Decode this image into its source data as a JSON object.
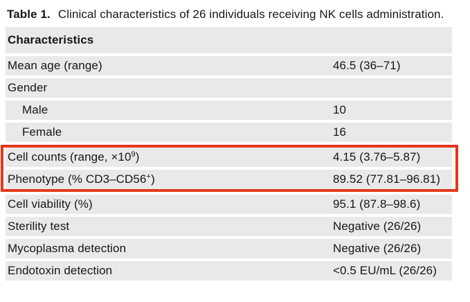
{
  "caption": {
    "label": "Table 1.",
    "text": "Clinical characteristics of 26 individuals receiving NK cells administration."
  },
  "table": {
    "header": "Characteristics",
    "rows": [
      {
        "label": "Mean age (range)",
        "sup": "",
        "post": "",
        "value": "46.5 (36–71)"
      },
      {
        "label": "Gender",
        "sup": "",
        "post": "",
        "value": ""
      },
      {
        "label": "Male",
        "sup": "",
        "post": "",
        "value": "10"
      },
      {
        "label": "Female",
        "sup": "",
        "post": "",
        "value": "16"
      },
      {
        "label": "Cell counts (range, ×10",
        "sup": "9",
        "post": ")",
        "value": "4.15 (3.76–5.87)"
      },
      {
        "label": "Phenotype (% CD3–CD56",
        "sup": "+",
        "post": ")",
        "value": "89.52 (77.81–96.81)"
      },
      {
        "label": "Cell viability (%)",
        "sup": "",
        "post": "",
        "value": "95.1 (87.8–98.6)"
      },
      {
        "label": "Sterility test",
        "sup": "",
        "post": "",
        "value": "Negative (26/26)"
      },
      {
        "label": "Mycoplasma detection",
        "sup": "",
        "post": "",
        "value": "Negative (26/26)"
      },
      {
        "label": "Endotoxin detection",
        "sup": "",
        "post": "",
        "value": "<0.5 EU/mL (26/26)"
      }
    ]
  },
  "colors": {
    "row_bg": "#e9e9e9",
    "highlight": "#e5381a",
    "text": "#161616"
  }
}
